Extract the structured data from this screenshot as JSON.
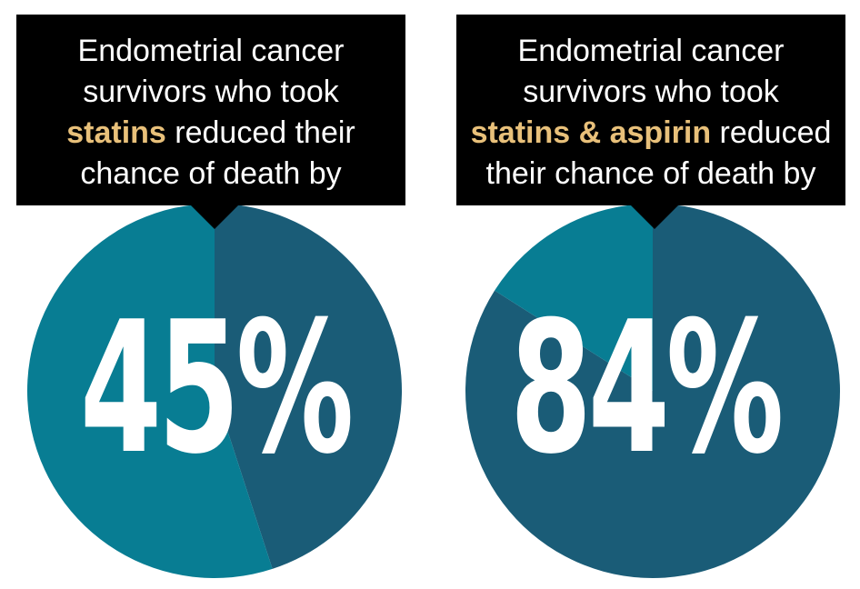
{
  "colors": {
    "slice_teal": "#087d93",
    "slice_slate": "#1a5c77",
    "callout_bg": "#000000",
    "highlight": "#e8c07a",
    "text_light": "#ffffff"
  },
  "chart_data": [
    {
      "type": "pie",
      "caption_line1": "Endometrial cancer",
      "caption_line2": "survivors who took",
      "caption_highlight": "statins",
      "caption_after": " reduced their",
      "caption_line4": "chance of death by",
      "value_label": "45%",
      "slices": [
        {
          "value": 45,
          "color": "#1a5c77"
        },
        {
          "value": 55,
          "color": "#087d93"
        }
      ]
    },
    {
      "type": "pie",
      "caption_line1": "Endometrial cancer",
      "caption_line2": "survivors who took",
      "caption_highlight": "statins & aspirin",
      "caption_after": " reduced",
      "caption_line4": "their chance of death by",
      "value_label": "84%",
      "slices": [
        {
          "value": 84,
          "color": "#1a5c77"
        },
        {
          "value": 16,
          "color": "#087d93"
        }
      ]
    }
  ]
}
